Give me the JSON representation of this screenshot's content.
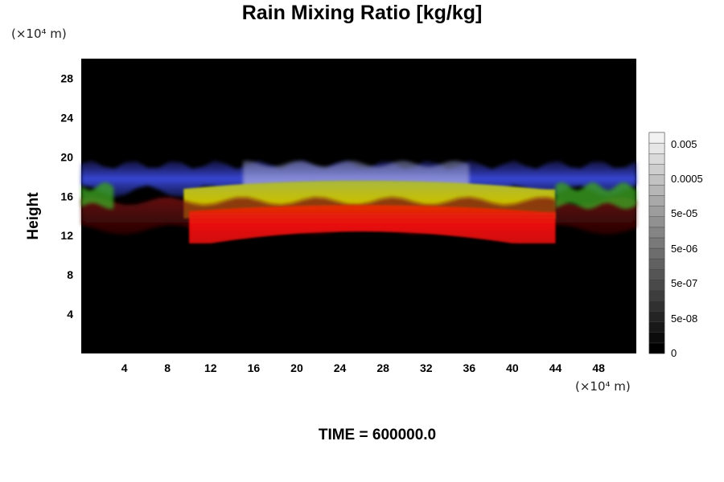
{
  "chart_data": {
    "type": "heatmap",
    "title": "Rain Mixing Ratio [kg/kg]",
    "ylabel": "Height",
    "x_unit": "(×10⁴ m)",
    "y_unit": "(×10⁴ m)",
    "annotation": "TIME = 600000.0",
    "xlim": [
      0,
      51.5
    ],
    "ylim": [
      0,
      30
    ],
    "x_ticks": [
      4,
      8,
      12,
      16,
      20,
      24,
      28,
      32,
      36,
      40,
      44,
      48
    ],
    "y_ticks": [
      4,
      8,
      12,
      16,
      20,
      24,
      28
    ],
    "colorbar": {
      "position": "right",
      "labels": [
        "0",
        "5e-08",
        "5e-07",
        "5e-06",
        "5e-05",
        "0.0005",
        "0.005"
      ]
    },
    "bands": [
      {
        "color": "#3038c8",
        "x_start": 0,
        "x_end": 51.5,
        "y_bottom": 16.5,
        "y_top": 19.5
      },
      {
        "color": "#b4b400",
        "x_start": 9,
        "x_end": 44,
        "y_bottom": 13.5,
        "y_top": 17.5
      },
      {
        "color": "#e01010",
        "x_start": 9,
        "x_end": 44,
        "y_bottom": 11,
        "y_top": 15
      },
      {
        "color": "#3aa020",
        "x_start": 0,
        "x_end": 3,
        "y_bottom": 15,
        "y_top": 17
      },
      {
        "color": "#3aa020",
        "x_start": 44,
        "x_end": 51.5,
        "y_bottom": 15,
        "y_top": 17
      }
    ]
  }
}
